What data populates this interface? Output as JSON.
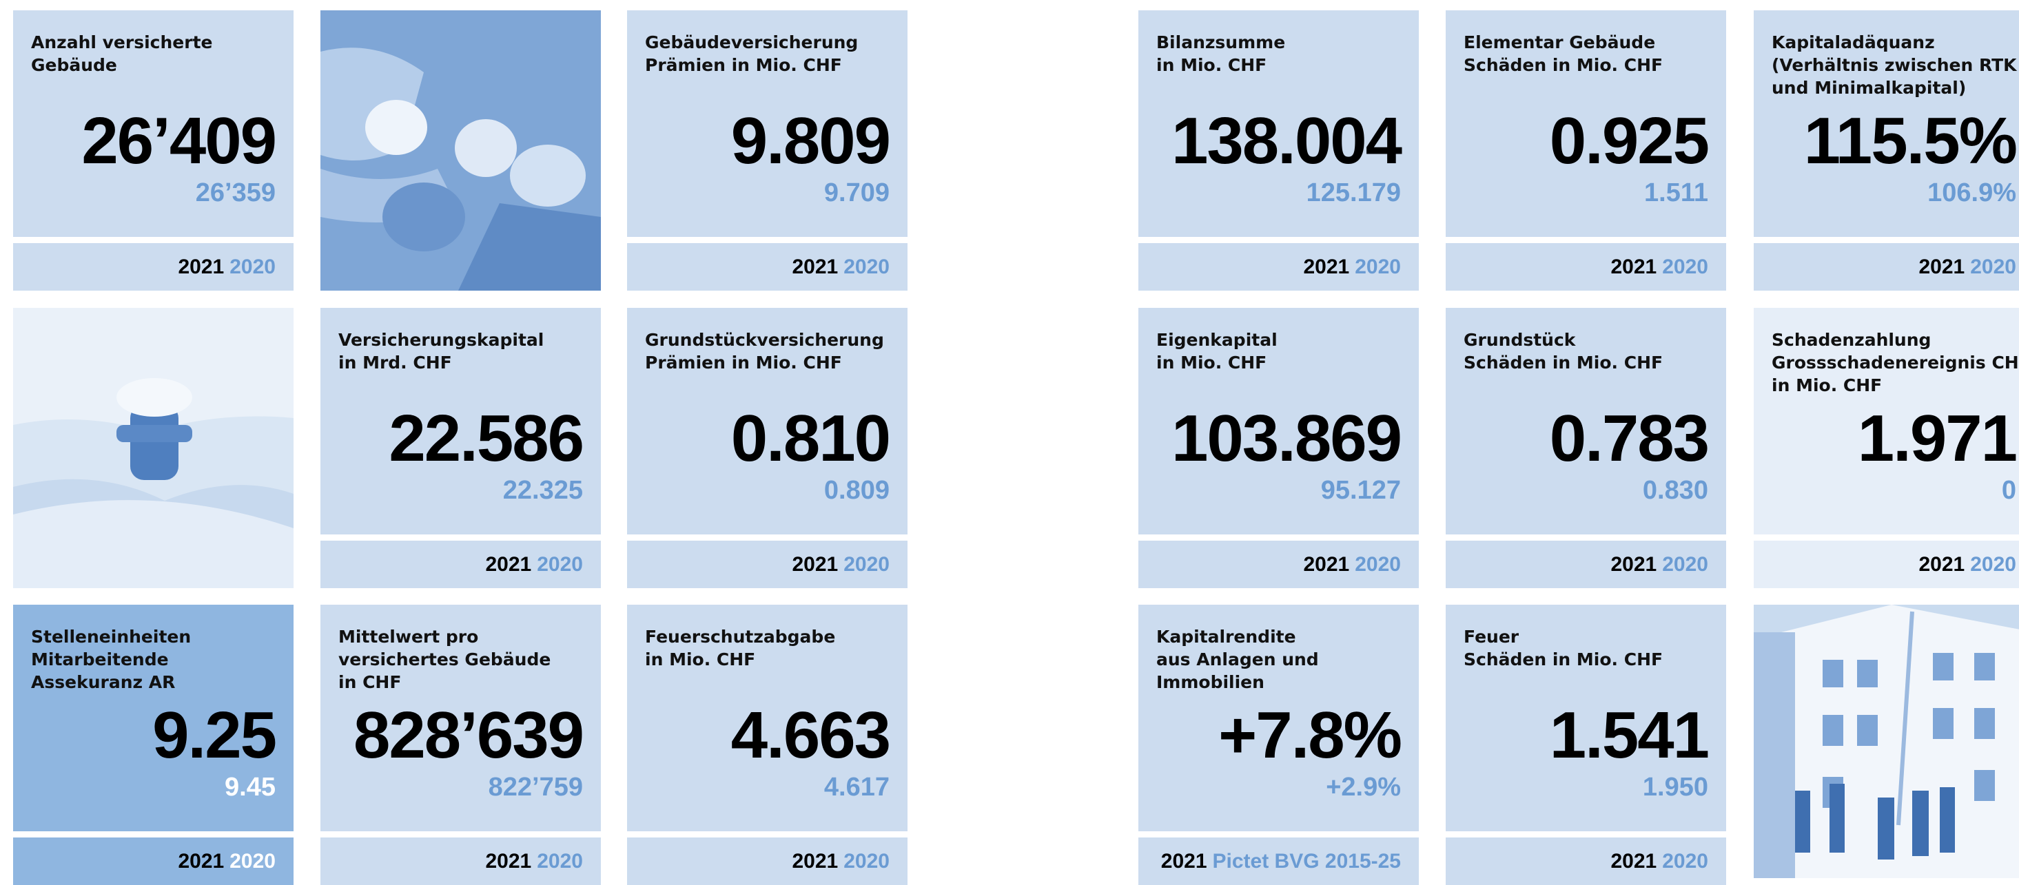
{
  "tiles": [
    {
      "label": [
        "Anzahl versicherte",
        "Gebäude"
      ],
      "value": "26’409",
      "previous": "26’359",
      "year": "2021",
      "compare": "2020"
    },
    {
      "label": [
        "Gebäudeversicherung",
        "Prämien in Mio. CHF"
      ],
      "value": "9.809",
      "previous": "9.709",
      "year": "2021",
      "compare": "2020"
    },
    {
      "label": [
        "Bilanzsumme",
        "in Mio. CHF"
      ],
      "value": "138.004",
      "previous": "125.179",
      "year": "2021",
      "compare": "2020"
    },
    {
      "label": [
        "Elementar Gebäude",
        "Schäden in Mio. CHF"
      ],
      "value": "0.925",
      "previous": "1.511",
      "year": "2021",
      "compare": "2020"
    },
    {
      "label": [
        "Kapitaladäquanz",
        "(Verhältnis zwischen RTK",
        "und Minimalkapital)"
      ],
      "value": "115.5%",
      "previous": "106.9%",
      "year": "2021",
      "compare": "2020"
    },
    {
      "label": [
        "Versicherungskapital",
        "in Mrd. CHF"
      ],
      "value": "22.586",
      "previous": "22.325",
      "year": "2021",
      "compare": "2020"
    },
    {
      "label": [
        "Grundstückversicherung",
        "Prämien in Mio. CHF"
      ],
      "value": "0.810",
      "previous": "0.809",
      "year": "2021",
      "compare": "2020"
    },
    {
      "label": [
        "Eigenkapital",
        "in Mio. CHF"
      ],
      "value": "103.869",
      "previous": "95.127",
      "year": "2021",
      "compare": "2020"
    },
    {
      "label": [
        "Grundstück",
        "Schäden in Mio. CHF"
      ],
      "value": "0.783",
      "previous": "0.830",
      "year": "2021",
      "compare": "2020"
    },
    {
      "label": [
        "Schadenzahlung",
        "Grossschadenereignis CH",
        "in Mio. CHF"
      ],
      "value": "1.971",
      "previous": "0",
      "year": "2021",
      "compare": "2020",
      "variant": "pale"
    },
    {
      "label": [
        "Stelleneinheiten",
        "Mitarbeitende",
        "Assekuranz AR"
      ],
      "value": "9.25",
      "previous": "9.45",
      "year": "2021",
      "compare": "2020",
      "variant": "dark"
    },
    {
      "label": [
        "Mittelwert pro",
        "versichertes Gebäude",
        "in CHF"
      ],
      "value": "828’639",
      "previous": "822’759",
      "year": "2021",
      "compare": "2020"
    },
    {
      "label": [
        "Feuerschutzabgabe",
        "in Mio. CHF"
      ],
      "value": "4.663",
      "previous": "4.617",
      "year": "2021",
      "compare": "2020"
    },
    {
      "label": [
        "Kapitalrendite",
        "aus Anlagen und",
        "Immobilien"
      ],
      "value": "+7.8%",
      "previous": "+2.9%",
      "year": "2021",
      "compare": "Pictet BVG 2015-25"
    },
    {
      "label": [
        "Feuer",
        "Schäden in Mio. CHF"
      ],
      "value": "1.541",
      "previous": "1.950",
      "year": "2021",
      "compare": "2020"
    }
  ]
}
